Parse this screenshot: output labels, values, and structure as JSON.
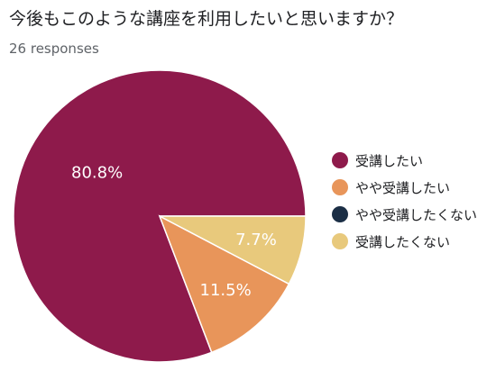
{
  "header": {
    "title": "今後もこのような講座を利用したいと思いますか？",
    "responses": "26 responses"
  },
  "chart_data": {
    "type": "pie",
    "title": "今後もこのような講座を利用したいと思いますか？",
    "categories": [
      "受講したい",
      "やや受講したい",
      "やや受講したくない",
      "受講したくない"
    ],
    "values": [
      80.8,
      11.5,
      0,
      7.7
    ],
    "value_labels": [
      "80.8%",
      "11.5%",
      "",
      "7.7%"
    ],
    "colors": [
      "#8e1a4b",
      "#e8955a",
      "#1b2e45",
      "#e8c97c"
    ],
    "legend_placement": "right"
  }
}
